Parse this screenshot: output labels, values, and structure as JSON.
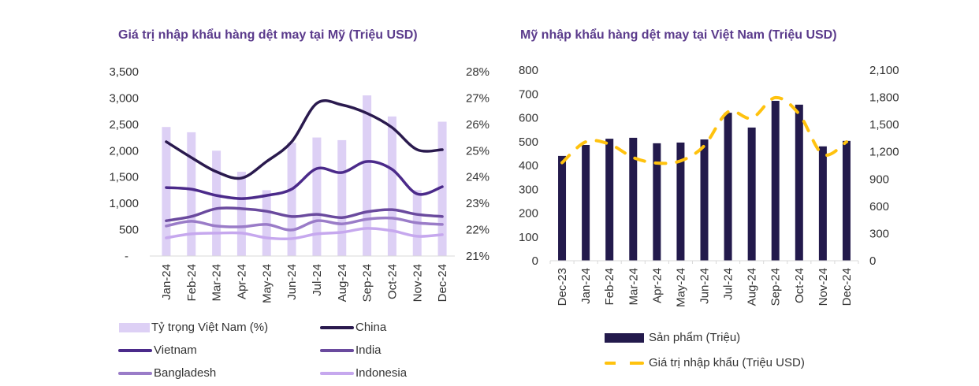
{
  "chart_data": [
    {
      "type": "bar+line",
      "title": "Giá trị nhập khẩu hàng dệt may tại Mỹ (Triệu USD)",
      "categories": [
        "Jan-24",
        "Feb-24",
        "Mar-24",
        "Apr-24",
        "May-24",
        "Jun-24",
        "Jul-24",
        "Aug-24",
        "Sep-24",
        "Oct-24",
        "Nov-24",
        "Dec-24"
      ],
      "y_left": {
        "ticks": [
          "-",
          "500",
          "1,000",
          "1,500",
          "2,000",
          "2,500",
          "3,000",
          "3,500"
        ],
        "range": [
          0,
          3500
        ]
      },
      "y_right": {
        "ticks": [
          "21%",
          "22%",
          "23%",
          "24%",
          "25%",
          "26%",
          "27%",
          "28%"
        ],
        "range": [
          21,
          28
        ]
      },
      "bars": {
        "name": "Tỷ trọng Việt Nam (%)",
        "axis": "right",
        "color": "#ddd0f5",
        "values": [
          25.9,
          25.7,
          25.0,
          24.2,
          23.5,
          25.3,
          25.5,
          25.4,
          27.1,
          26.3,
          23.5,
          26.1
        ]
      },
      "series": [
        {
          "name": "China",
          "color": "#2a1a4e",
          "values": [
            2170,
            1870,
            1600,
            1480,
            1795,
            2170,
            2900,
            2870,
            2710,
            2440,
            2020,
            2020
          ]
        },
        {
          "name": "Vietnam",
          "color": "#4b2a8a",
          "values": [
            1300,
            1270,
            1150,
            1090,
            1150,
            1270,
            1660,
            1585,
            1795,
            1645,
            1180,
            1315
          ]
        },
        {
          "name": "India",
          "color": "#6a4a9e",
          "values": [
            670,
            750,
            900,
            900,
            850,
            750,
            790,
            730,
            840,
            880,
            790,
            750
          ]
        },
        {
          "name": "Bangladesh",
          "color": "#9a7cc8",
          "values": [
            570,
            660,
            570,
            555,
            600,
            495,
            670,
            610,
            700,
            720,
            630,
            600
          ]
        },
        {
          "name": "Indonesia",
          "color": "#c6a8ee",
          "values": [
            345,
            420,
            435,
            435,
            345,
            330,
            420,
            450,
            525,
            480,
            375,
            405
          ]
        }
      ],
      "legend": [
        "Tỷ trọng Việt Nam (%)",
        "China",
        "Vietnam",
        "India",
        "Bangladesh",
        "Indonesia"
      ],
      "legend_position": "bottom"
    },
    {
      "type": "bar+line",
      "title": "Mỹ nhập khẩu hàng dệt may tại Việt Nam (Triệu USD)",
      "categories": [
        "Dec-23",
        "Jan-24",
        "Feb-24",
        "Mar-24",
        "Apr-24",
        "May-24",
        "Jun-24",
        "Jul-24",
        "Aug-24",
        "Sep-24",
        "Oct-24",
        "Nov-24",
        "Dec-24"
      ],
      "y_left": {
        "ticks": [
          "0",
          "100",
          "200",
          "300",
          "400",
          "500",
          "600",
          "700",
          "800"
        ],
        "range": [
          0,
          800
        ]
      },
      "y_right": {
        "ticks": [
          "0",
          "300",
          "600",
          "900",
          "1,200",
          "1,500",
          "1,800",
          "2,100"
        ],
        "range": [
          0,
          2100
        ]
      },
      "bars": {
        "name": "Sản phẩm (Triệu)",
        "axis": "left",
        "color": "#231a4c",
        "values": [
          440,
          486,
          512,
          516,
          493,
          496,
          509,
          621,
          559,
          671,
          655,
          480,
          503
        ]
      },
      "line": {
        "name": "Giá trị nhập khẩu (Triệu USD)",
        "axis": "right",
        "color": "#ffc20e",
        "style": "dashed",
        "values": [
          1080,
          1310,
          1285,
          1137,
          1076,
          1100,
          1267,
          1640,
          1571,
          1797,
          1615,
          1172,
          1310
        ]
      },
      "legend": [
        "Sản phẩm (Triệu)",
        "Giá trị nhập khẩu (Triệu USD)"
      ],
      "legend_position": "bottom"
    }
  ]
}
